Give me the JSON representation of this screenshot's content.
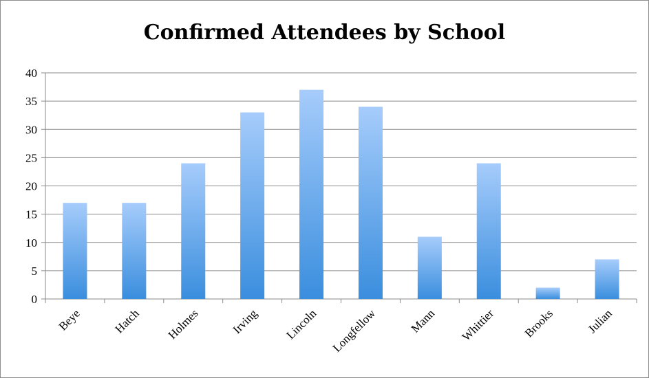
{
  "chart_data": {
    "type": "bar",
    "title": "Confirmed Attendees by School",
    "categories": [
      "Beye",
      "Hatch",
      "Holmes",
      "Irving",
      "Lincoln",
      "Longfellow",
      "Mann",
      "Whittier",
      "Brooks",
      "Julian"
    ],
    "values": [
      17,
      17,
      24,
      33,
      37,
      34,
      11,
      24,
      2,
      7
    ],
    "ylim": [
      0,
      40
    ],
    "yticks": [
      0,
      5,
      10,
      15,
      20,
      25,
      30,
      35,
      40
    ],
    "grid": true,
    "legend": "none",
    "colors": {
      "bar_top": "#a6ccfb",
      "bar_bottom": "#3a8ede",
      "grid": "#8a8a8a"
    }
  }
}
